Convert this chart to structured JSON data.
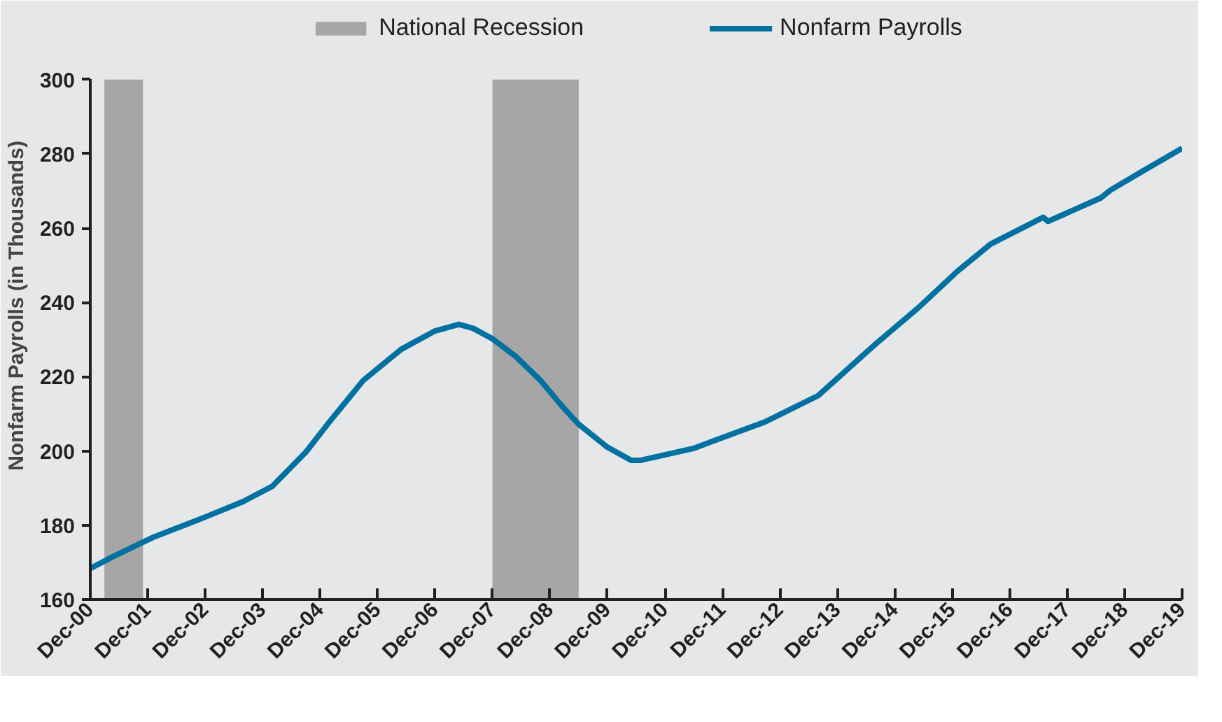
{
  "chart_data": {
    "type": "line",
    "ylabel": "Nonfarm Payrolls (in Thousands)",
    "x": [
      "2000-12",
      "2001-05",
      "2002-01",
      "2002-12",
      "2003-08",
      "2004-02",
      "2004-09",
      "2005-02",
      "2005-09",
      "2006-05",
      "2006-12",
      "2007-05",
      "2007-08",
      "2007-12",
      "2008-05",
      "2008-10",
      "2009-03",
      "2009-06",
      "2009-12",
      "2010-05",
      "2010-07",
      "2011-06",
      "2012-09",
      "2013-08",
      "2014-08",
      "2015-05",
      "2016-01",
      "2016-08",
      "2017-07",
      "2017-08",
      "2018-07",
      "2018-09",
      "2019-04",
      "2019-12"
    ],
    "series": [
      {
        "name": "Nonfarm Payrolls",
        "color": "#0071a1",
        "values": [
          168.4,
          171.7,
          176.7,
          182.2,
          186.4,
          190.5,
          199.7,
          208,
          219,
          227.4,
          232.3,
          234.1,
          233,
          230.2,
          225.3,
          219,
          211.4,
          207.2,
          201,
          197.5,
          197.5,
          200.7,
          207.9,
          214.9,
          228.8,
          238.6,
          248.3,
          255.7,
          262.9,
          261.8,
          268.1,
          270.2,
          275.5,
          281.5
        ]
      }
    ],
    "bands": [
      {
        "axis": "x",
        "from": "2001-03",
        "to": "2001-11",
        "label": "National Recession",
        "color": "#a6a6a6"
      },
      {
        "axis": "x",
        "from": "2007-12",
        "to": "2009-06",
        "color": "#a6a6a6"
      }
    ],
    "xlim": [
      "2000-12",
      "2019-12"
    ],
    "xticks": [
      {
        "value": "2000-12",
        "label": "Dec-00"
      },
      {
        "value": "2001-12",
        "label": "Dec-01"
      },
      {
        "value": "2002-12",
        "label": "Dec-02"
      },
      {
        "value": "2003-12",
        "label": "Dec-03"
      },
      {
        "value": "2004-12",
        "label": "Dec-04"
      },
      {
        "value": "2005-12",
        "label": "Dec-05"
      },
      {
        "value": "2006-12",
        "label": "Dec-06"
      },
      {
        "value": "2007-12",
        "label": "Dec-07"
      },
      {
        "value": "2008-12",
        "label": "Dec-08"
      },
      {
        "value": "2009-12",
        "label": "Dec-09"
      },
      {
        "value": "2010-12",
        "label": "Dec-10"
      },
      {
        "value": "2011-12",
        "label": "Dec-11"
      },
      {
        "value": "2012-12",
        "label": "Dec-12"
      },
      {
        "value": "2013-12",
        "label": "Dec-13"
      },
      {
        "value": "2014-12",
        "label": "Dec-14"
      },
      {
        "value": "2015-12",
        "label": "Dec-15"
      },
      {
        "value": "2016-12",
        "label": "Dec-16"
      },
      {
        "value": "2017-12",
        "label": "Dec-17"
      },
      {
        "value": "2018-12",
        "label": "Dec-18"
      },
      {
        "value": "2019-12",
        "label": "Dec-19"
      }
    ],
    "ylim": [
      160,
      300
    ],
    "yticks": [
      160,
      180,
      200,
      220,
      240,
      260,
      280,
      300
    ],
    "legend": "top",
    "line_style": "solid"
  }
}
